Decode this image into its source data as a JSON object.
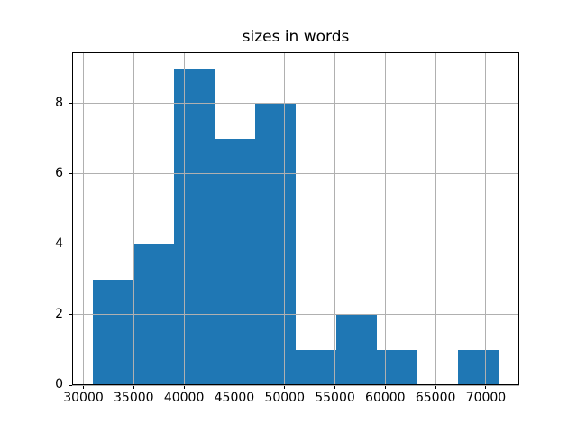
{
  "figure": {
    "background": "#ffffff"
  },
  "chart_data": {
    "type": "bar",
    "subtype": "histogram",
    "title": "sizes in words",
    "xlabel": "",
    "ylabel": "",
    "bin_edges": [
      30900,
      34940,
      38980,
      43020,
      47060,
      51100,
      55140,
      59180,
      63220,
      67260,
      71300
    ],
    "counts": [
      3,
      4,
      9,
      7,
      8,
      1,
      2,
      1,
      0,
      1
    ],
    "xlim": [
      28880,
      73320
    ],
    "ylim": [
      0,
      9.45
    ],
    "xticks": [
      30000,
      35000,
      40000,
      45000,
      50000,
      55000,
      60000,
      65000,
      70000
    ],
    "yticks": [
      0,
      2,
      4,
      6,
      8
    ],
    "grid": true,
    "grid_above_bars": true,
    "legend": "none",
    "bar_color": "#1f77b4",
    "grid_color": "#b0b0b0",
    "spine_color": "#000000",
    "tick_label_color": "#000000"
  }
}
